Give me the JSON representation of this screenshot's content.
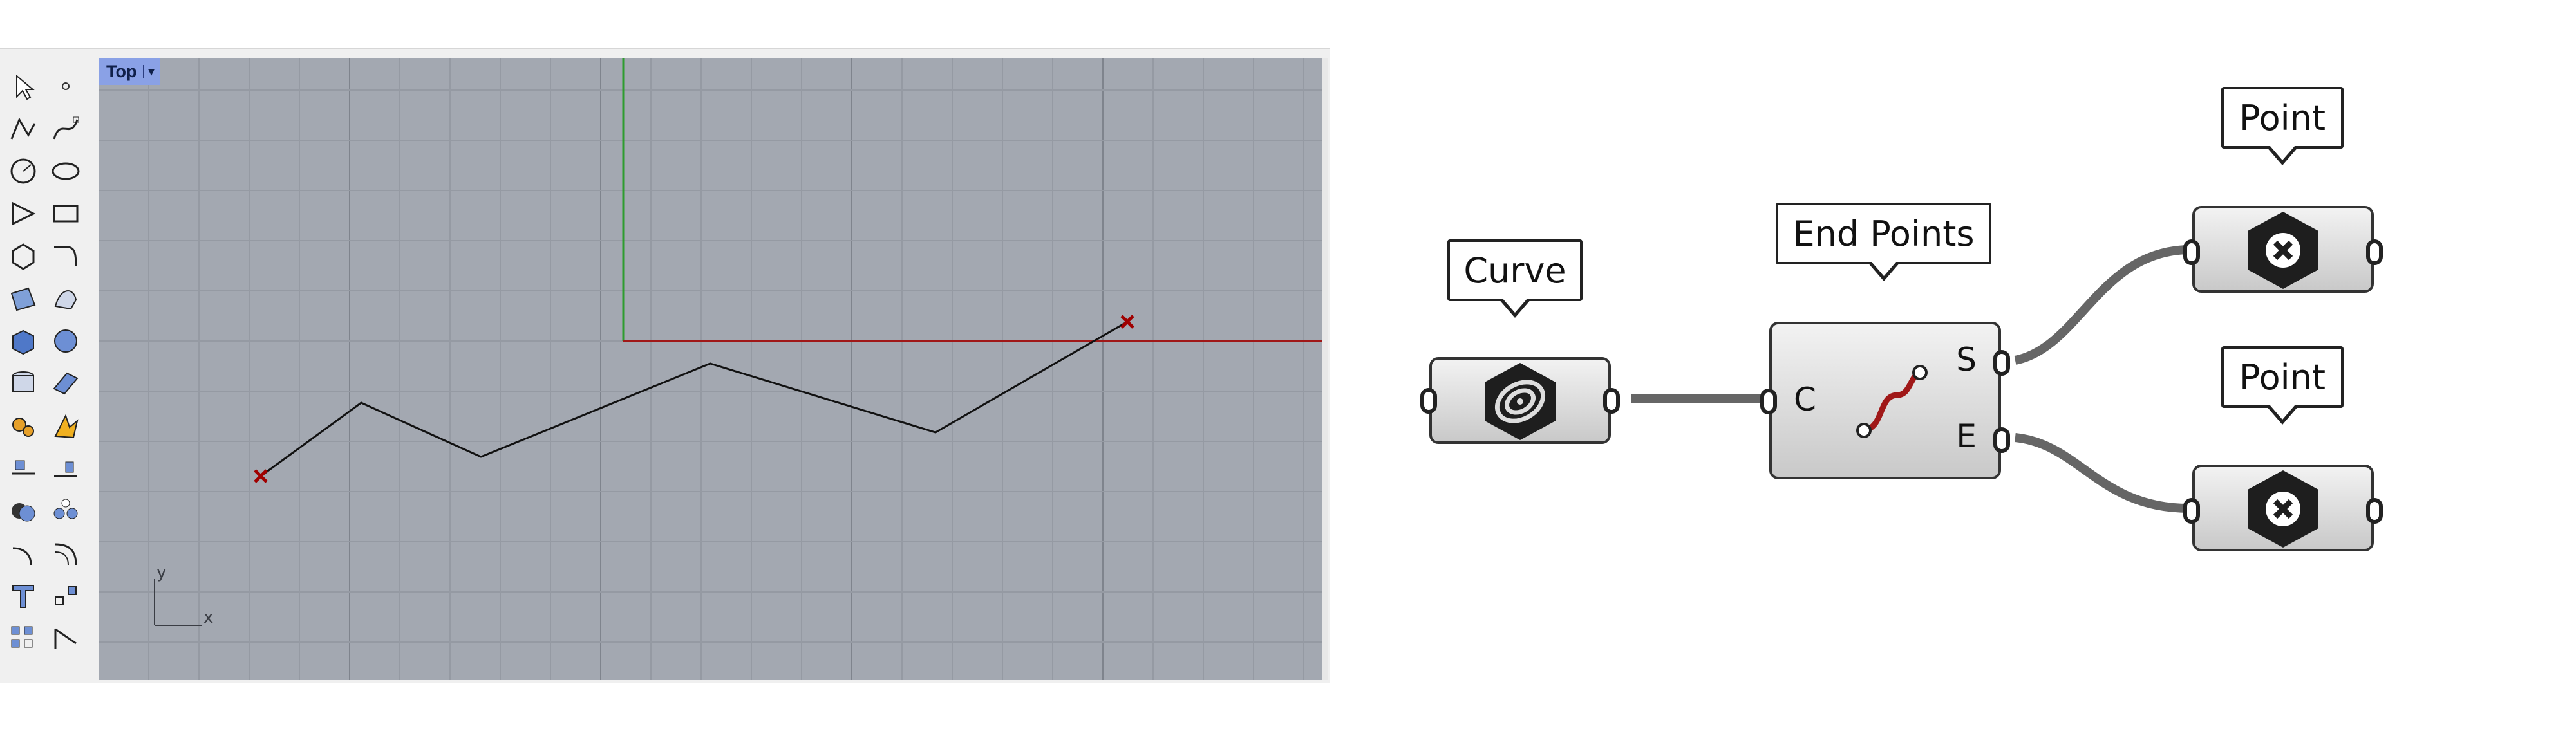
{
  "viewport": {
    "title": "Top",
    "dropdown_glyph": "▾",
    "axis_y_label": "y",
    "axis_x_label": "x"
  },
  "toolbar": {
    "tools": [
      {
        "name": "select-arrow-icon"
      },
      {
        "name": "point-icon"
      },
      {
        "name": "polyline-icon"
      },
      {
        "name": "curve-cv-icon"
      },
      {
        "name": "circle-icon"
      },
      {
        "name": "ellipse-icon"
      },
      {
        "name": "arc-icon"
      },
      {
        "name": "rectangle-icon"
      },
      {
        "name": "polygon-icon"
      },
      {
        "name": "fillet-curve-icon"
      },
      {
        "name": "surface-from-points-icon"
      },
      {
        "name": "extrude-curve-icon"
      },
      {
        "name": "box-icon"
      },
      {
        "name": "sphere-icon"
      },
      {
        "name": "cylinder-icon"
      },
      {
        "name": "mesh-plane-icon"
      },
      {
        "name": "explode-icon"
      },
      {
        "name": "boolean-split-icon"
      },
      {
        "name": "trim-icon"
      },
      {
        "name": "split-icon"
      },
      {
        "name": "boolean-union-icon"
      },
      {
        "name": "group-icon"
      },
      {
        "name": "fillet-edge-icon"
      },
      {
        "name": "blend-icon"
      },
      {
        "name": "text-icon"
      },
      {
        "name": "move-icon"
      },
      {
        "name": "array-icon"
      },
      {
        "name": "dimension-icon"
      }
    ]
  },
  "grasshopper": {
    "curve_label": "Curve",
    "end_points_label": "End Points",
    "point_label_1": "Point",
    "point_label_2": "Point",
    "input_c": "C",
    "output_s": "S",
    "output_e": "E"
  }
}
